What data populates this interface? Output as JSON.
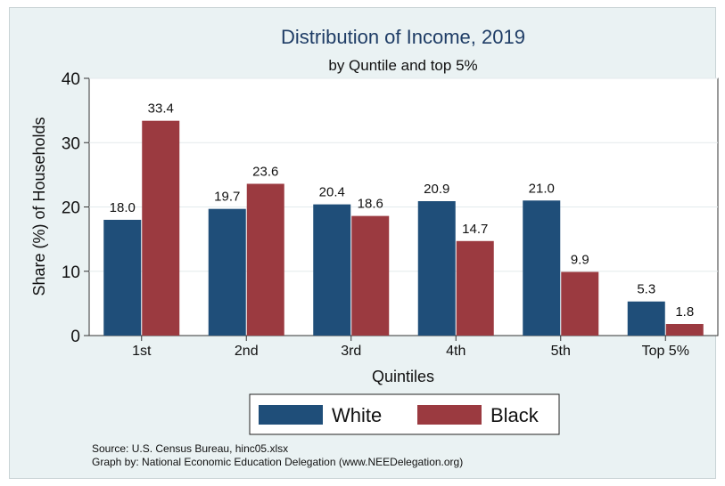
{
  "chart_data": {
    "type": "bar",
    "title": "Distribution of Income, 2019",
    "subtitle": "by Quntile and top 5%",
    "xlabel": "Quintiles",
    "ylabel": "Share (%) of Households",
    "ylim": [
      0,
      40
    ],
    "yticks": [
      "0",
      "10",
      "20",
      "30",
      "40"
    ],
    "grid": true,
    "legend_position": "bottom",
    "categories": [
      "1st",
      "2nd",
      "3rd",
      "4th",
      "5th",
      "Top 5%"
    ],
    "series": [
      {
        "name": "White",
        "color": "#1f4e79",
        "values": [
          18.0,
          19.7,
          20.4,
          20.9,
          21.0,
          5.3
        ],
        "labels": [
          "18.0",
          "19.7",
          "20.4",
          "20.9",
          "21.0",
          "5.3"
        ]
      },
      {
        "name": "Black",
        "color": "#9b3a40",
        "values": [
          33.4,
          23.6,
          18.6,
          14.7,
          9.9,
          1.8
        ],
        "labels": [
          "33.4",
          "23.6",
          "18.6",
          "14.7",
          "9.9",
          "1.8"
        ]
      }
    ]
  },
  "notes": {
    "source": "Source: U.S. Census Bureau, hinc05.xlsx",
    "graph_by": "Graph by: National Economic Education Delegation (www.NEEDelegation.org)"
  },
  "colors": {
    "background": "#eaf2f3",
    "plot_area": "#ffffff",
    "title": "#1f3d66",
    "gridline": "#e3eaec"
  }
}
